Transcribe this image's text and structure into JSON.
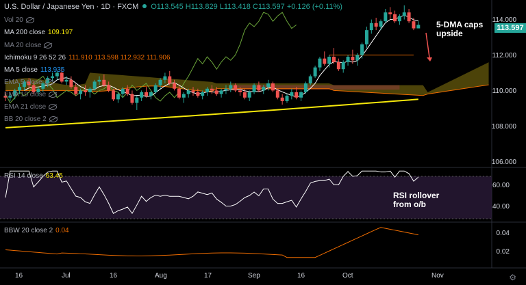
{
  "header": {
    "symbol": "U.S. Dollar / Japanese Yen · 1D · FXCM",
    "ohlc": "O113.545 H113.829 L113.418 C113.597 +0.126 (+0.11%)"
  },
  "indicators": [
    {
      "label": "Vol 20",
      "value": "",
      "color": "#787b86",
      "hidden": true
    },
    {
      "label": "MA 200 close",
      "value": "109.197",
      "color": "#f5e70b",
      "hidden": false
    },
    {
      "label": "MA 20 close",
      "value": "",
      "color": "#787b86",
      "hidden": true
    },
    {
      "label": "Ichimoku 9 26 52 26",
      "value": "111.910  113.598  112.932  111.906",
      "color": "#ef6c00",
      "hidden": false
    },
    {
      "label": "MA 5 close",
      "value": "113.935",
      "color": "#2196f3",
      "hidden": false
    },
    {
      "label": "EMA 5 close",
      "value": "",
      "color": "#787b86",
      "hidden": true
    },
    {
      "label": "EMA 10 close",
      "value": "",
      "color": "#787b86",
      "hidden": true
    },
    {
      "label": "EMA 21 close",
      "value": "",
      "color": "#787b86",
      "hidden": true
    },
    {
      "label": "BB 20 close 2",
      "value": "",
      "color": "#787b86",
      "hidden": true
    }
  ],
  "rsi": {
    "label": "RSI 14 close",
    "value": "63.45"
  },
  "bbw": {
    "label": "BBW 20 close 2",
    "value": "0.04"
  },
  "price_axis": [
    "114.000",
    "112.000",
    "110.000",
    "108.000",
    "106.000"
  ],
  "last_price": "113.597",
  "rsi_axis": [
    "60.00",
    "40.00"
  ],
  "bbw_axis": [
    "0.04",
    "0.02"
  ],
  "time_axis": [
    "16",
    "Jul",
    "16",
    "Aug",
    "17",
    "Sep",
    "16",
    "Oct",
    "Nov"
  ],
  "annotations": {
    "dma": [
      "5-DMA caps",
      "upside"
    ],
    "rsi": [
      "RSI rollover",
      "from o/b"
    ]
  },
  "colors": {
    "up": "#26a69a",
    "down": "#ef5350",
    "ma200": "#f5e70b",
    "ma5": "#ffffff",
    "lagging": "#6ba53a",
    "rsi_band": "#2a1a38",
    "bbw": "#ef6c00",
    "arrow": "#ef5350"
  },
  "chart_data": {
    "type": "candlestick",
    "y_range": [
      105.6,
      115.0
    ],
    "candles": [
      [
        109.6,
        109.8,
        109.3,
        109.5
      ],
      [
        109.5,
        109.8,
        109.3,
        109.6
      ],
      [
        109.6,
        110.0,
        109.4,
        109.9
      ],
      [
        109.9,
        110.3,
        109.7,
        110.1
      ],
      [
        110.1,
        110.5,
        109.9,
        110.4
      ],
      [
        110.4,
        110.6,
        110.0,
        110.2
      ],
      [
        110.2,
        110.4,
        109.7,
        109.8
      ],
      [
        109.8,
        110.1,
        109.6,
        110.0
      ],
      [
        110.0,
        110.4,
        109.8,
        110.3
      ],
      [
        110.3,
        110.7,
        110.1,
        110.6
      ],
      [
        110.6,
        110.9,
        110.4,
        110.7
      ],
      [
        110.7,
        111.0,
        110.5,
        110.9
      ],
      [
        110.9,
        111.1,
        110.3,
        110.4
      ],
      [
        110.4,
        110.7,
        110.2,
        110.5
      ],
      [
        110.5,
        110.7,
        110.0,
        110.1
      ],
      [
        110.1,
        110.3,
        109.6,
        109.7
      ],
      [
        109.7,
        110.0,
        109.4,
        109.9
      ],
      [
        109.9,
        110.2,
        109.6,
        109.8
      ],
      [
        109.8,
        110.1,
        109.5,
        110.0
      ],
      [
        110.0,
        110.5,
        109.9,
        110.4
      ],
      [
        110.4,
        110.7,
        110.2,
        110.5
      ],
      [
        110.5,
        110.8,
        110.1,
        110.2
      ],
      [
        110.2,
        110.4,
        109.8,
        109.9
      ],
      [
        109.9,
        110.0,
        109.3,
        109.4
      ],
      [
        109.4,
        109.8,
        109.2,
        109.7
      ],
      [
        109.7,
        110.1,
        109.5,
        110.0
      ],
      [
        110.0,
        110.2,
        109.6,
        109.7
      ],
      [
        109.7,
        109.9,
        109.1,
        109.2
      ],
      [
        109.2,
        109.6,
        108.8,
        109.5
      ],
      [
        109.5,
        109.9,
        109.3,
        109.8
      ],
      [
        109.8,
        110.1,
        109.5,
        109.6
      ],
      [
        109.6,
        109.9,
        109.4,
        109.8
      ],
      [
        109.8,
        110.3,
        109.7,
        110.2
      ],
      [
        110.2,
        110.6,
        110.0,
        110.5
      ],
      [
        110.5,
        110.9,
        110.3,
        110.7
      ],
      [
        110.7,
        111.0,
        110.2,
        110.3
      ],
      [
        110.3,
        110.5,
        109.9,
        110.0
      ],
      [
        110.0,
        110.2,
        109.4,
        109.5
      ],
      [
        109.5,
        109.8,
        109.2,
        109.7
      ],
      [
        109.7,
        110.0,
        109.5,
        109.9
      ],
      [
        109.9,
        110.1,
        109.6,
        109.8
      ],
      [
        109.8,
        110.0,
        109.5,
        109.6
      ],
      [
        109.6,
        109.9,
        109.4,
        109.8
      ],
      [
        109.8,
        110.1,
        109.6,
        110.0
      ],
      [
        110.0,
        110.2,
        109.7,
        109.9
      ],
      [
        109.9,
        110.1,
        109.6,
        109.7
      ],
      [
        109.7,
        110.0,
        109.5,
        109.9
      ],
      [
        109.9,
        110.2,
        109.7,
        110.0
      ],
      [
        110.0,
        110.4,
        109.8,
        110.2
      ],
      [
        110.2,
        110.3,
        109.8,
        109.9
      ],
      [
        109.9,
        110.1,
        109.6,
        109.8
      ],
      [
        109.8,
        110.0,
        109.4,
        109.5
      ],
      [
        109.5,
        109.9,
        109.3,
        109.8
      ],
      [
        109.8,
        110.3,
        109.7,
        110.2
      ],
      [
        110.2,
        110.4,
        109.8,
        109.9
      ],
      [
        109.9,
        110.2,
        109.7,
        110.1
      ],
      [
        110.1,
        110.5,
        109.9,
        110.3
      ],
      [
        110.3,
        110.4,
        109.8,
        109.9
      ],
      [
        109.9,
        110.0,
        109.4,
        109.5
      ],
      [
        109.5,
        109.7,
        109.1,
        109.3
      ],
      [
        109.3,
        109.7,
        109.2,
        109.6
      ],
      [
        109.6,
        110.0,
        109.4,
        109.8
      ],
      [
        109.8,
        110.1,
        109.4,
        109.5
      ],
      [
        109.5,
        109.9,
        109.3,
        109.8
      ],
      [
        109.8,
        110.4,
        109.7,
        110.3
      ],
      [
        110.3,
        110.8,
        110.2,
        110.7
      ],
      [
        110.7,
        111.3,
        110.6,
        111.2
      ],
      [
        111.2,
        111.8,
        111.0,
        111.7
      ],
      [
        111.7,
        112.1,
        111.3,
        111.4
      ],
      [
        111.4,
        111.9,
        111.2,
        111.8
      ],
      [
        111.8,
        112.3,
        111.4,
        111.5
      ],
      [
        111.5,
        111.7,
        111.0,
        111.1
      ],
      [
        111.1,
        111.6,
        110.9,
        111.5
      ],
      [
        111.5,
        111.9,
        111.3,
        111.8
      ],
      [
        111.8,
        112.2,
        111.4,
        111.6
      ],
      [
        111.6,
        112.0,
        111.3,
        111.9
      ],
      [
        111.9,
        112.6,
        111.7,
        112.5
      ],
      [
        112.5,
        113.5,
        112.3,
        113.3
      ],
      [
        113.3,
        113.9,
        113.1,
        113.7
      ],
      [
        113.7,
        114.0,
        113.3,
        113.5
      ],
      [
        113.5,
        113.9,
        113.3,
        113.8
      ],
      [
        113.8,
        114.5,
        113.7,
        114.3
      ],
      [
        114.3,
        114.6,
        113.9,
        114.2
      ],
      [
        114.2,
        114.4,
        113.7,
        113.8
      ],
      [
        113.8,
        114.2,
        113.6,
        114.1
      ],
      [
        114.1,
        114.7,
        113.9,
        114.3
      ],
      [
        114.3,
        114.5,
        113.7,
        113.8
      ],
      [
        113.8,
        114.0,
        113.3,
        113.4
      ],
      [
        113.4,
        113.8,
        113.4,
        113.6
      ]
    ]
  }
}
